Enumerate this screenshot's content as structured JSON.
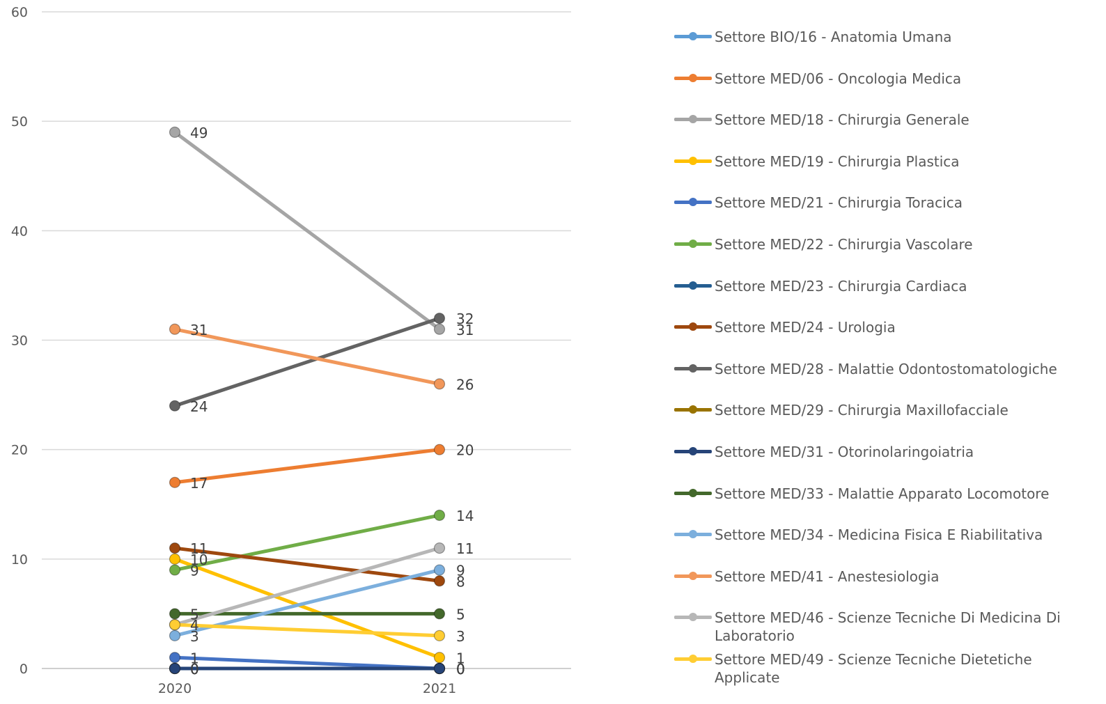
{
  "chart_data": {
    "type": "line",
    "x": [
      "2020",
      "2021"
    ],
    "ylim": [
      0,
      60
    ],
    "yticks": [
      0,
      10,
      20,
      30,
      40,
      50,
      60
    ],
    "grid": true,
    "legend_position": "right",
    "series": [
      {
        "name": "Settore BIO/16 - Anatomia Umana",
        "values": [
          0,
          0
        ],
        "color": "#5b9bd5"
      },
      {
        "name": "Settore MED/06 - Oncologia Medica",
        "values": [
          17,
          20
        ],
        "color": "#ed7d31"
      },
      {
        "name": "Settore MED/18 - Chirurgia Generale",
        "values": [
          49,
          31
        ],
        "color": "#a5a5a5"
      },
      {
        "name": "Settore MED/19 - Chirurgia Plastica",
        "values": [
          10,
          1
        ],
        "color": "#ffc000"
      },
      {
        "name": "Settore MED/21 - Chirurgia Toracica",
        "values": [
          1,
          0
        ],
        "color": "#4472c4"
      },
      {
        "name": "Settore MED/22 - Chirurgia Vascolare",
        "values": [
          9,
          14
        ],
        "color": "#70ad47"
      },
      {
        "name": "Settore MED/23 - Chirurgia Cardiaca",
        "values": [
          0,
          0
        ],
        "color": "#255e91"
      },
      {
        "name": "Settore MED/24 - Urologia",
        "values": [
          11,
          8
        ],
        "color": "#9e480e"
      },
      {
        "name": "Settore MED/28 - Malattie Odontostomatologiche",
        "values": [
          24,
          32
        ],
        "color": "#636363"
      },
      {
        "name": "Settore MED/29 - Chirurgia Maxillofacciale",
        "values": [
          0,
          0
        ],
        "color": "#997300"
      },
      {
        "name": "Settore MED/31 - Otorinolaringoiatria",
        "values": [
          0,
          0
        ],
        "color": "#264478"
      },
      {
        "name": "Settore MED/33 - Malattie Apparato Locomotore",
        "values": [
          5,
          5
        ],
        "color": "#43682b"
      },
      {
        "name": "Settore MED/34 - Medicina Fisica E Riabilitativa",
        "values": [
          3,
          9
        ],
        "color": "#7cafdd"
      },
      {
        "name": "Settore MED/41 - Anestesiologia",
        "values": [
          31,
          26
        ],
        "color": "#f1975a"
      },
      {
        "name": "Settore MED/46 - Scienze Tecniche Di Medicina Di Laboratorio",
        "values": [
          4,
          11
        ],
        "color": "#b7b7b7"
      },
      {
        "name": "Settore MED/49 - Scienze Tecniche Dietetiche Applicate",
        "values": [
          4,
          3
        ],
        "color": "#ffcd33"
      }
    ]
  }
}
